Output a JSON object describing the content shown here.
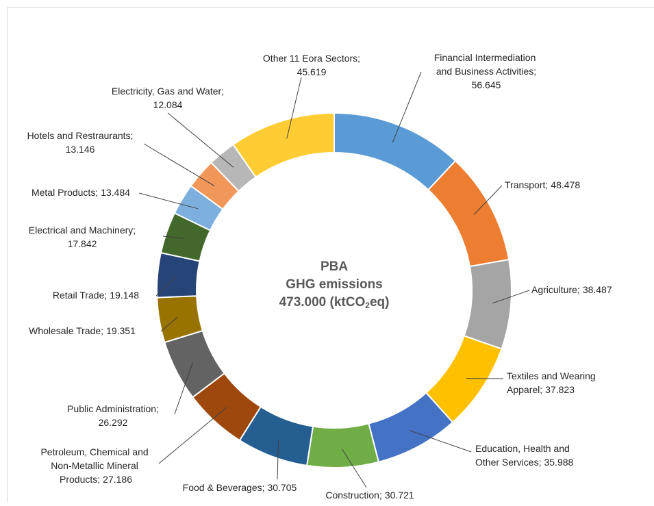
{
  "chart_data": {
    "type": "donut",
    "center_text": [
      "PBA",
      "GHG emissions"
    ],
    "center_total": [
      "473.000 (ktCO",
      "2",
      "eq)"
    ],
    "categories": [
      "Financial Intermediation and Business Activities;",
      "Transport;",
      "Agriculture;",
      "Textiles and Wearing Apparel;",
      "Education, Health and Other Services;",
      "Construction;",
      "Food & Beverages;",
      "Petroleum, Chemical and Non-Metallic Mineral Products;",
      "Public Administration;",
      "Wholesale Trade;",
      "Retail Trade;",
      "Electrical and Machinery;",
      "Metal Products;",
      "Hotels and Restraurants;",
      "Electricity, Gas and Water;",
      "Other 11 Eora Sectors;"
    ],
    "values": [
      56.645,
      48.478,
      38.487,
      37.823,
      35.988,
      30.721,
      30.705,
      27.186,
      26.292,
      19.351,
      19.148,
      17.842,
      13.484,
      13.146,
      12.084,
      45.619
    ],
    "colors": [
      "#5B9BD5",
      "#ED7D31",
      "#A5A5A5",
      "#FFC000",
      "#4472C4",
      "#70AD47",
      "#255E91",
      "#9E480E",
      "#636363",
      "#997300",
      "#264478",
      "#43682B",
      "#7CAFDD",
      "#F1975A",
      "#B7B7B7",
      "#FFCD33"
    ]
  }
}
